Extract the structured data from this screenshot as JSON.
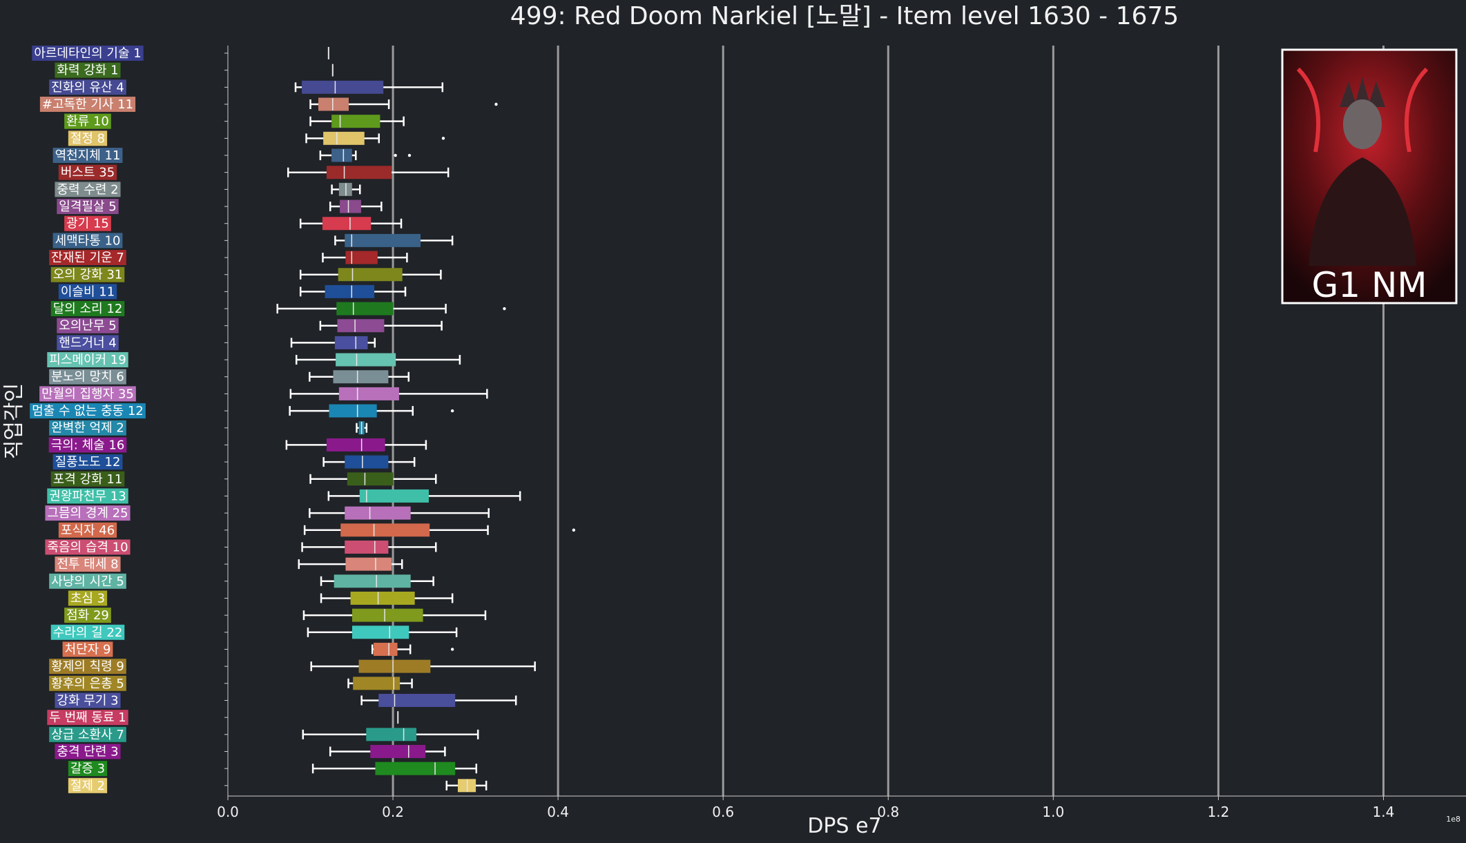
{
  "chart_data": {
    "type": "boxplot",
    "orientation": "horizontal",
    "title": "499: Red Doom Narkiel [노말] - Item level 1630 - 1675",
    "xlabel": "DPS e7",
    "ylabel": "직업각인",
    "x_scale_label": "1e8",
    "xlim": [
      0,
      1.5
    ],
    "x_ticks": [
      0.0,
      0.2,
      0.4,
      0.6,
      0.8,
      1.0,
      1.2,
      1.4
    ],
    "x_tick_labels": [
      "0.0",
      "0.2",
      "0.4",
      "0.6",
      "0.8",
      "1.0",
      "1.2",
      "1.4"
    ],
    "grid": "vertical lines at x ticks",
    "badge": {
      "text": "G1 NM",
      "placement": "top-right"
    },
    "categories": [
      {
        "label": "아르데타인의 기술 1",
        "color": "#3a3f8f",
        "whislo": 0.122,
        "q1": 0.122,
        "med": 0.122,
        "q3": 0.122,
        "whishi": 0.122,
        "fliers": []
      },
      {
        "label": "화력 강화 1",
        "color": "#3a6b1f",
        "whislo": 0.127,
        "q1": 0.127,
        "med": 0.127,
        "q3": 0.127,
        "whishi": 0.127,
        "fliers": []
      },
      {
        "label": "진화의 유산 4",
        "color": "#454a92",
        "whislo": 0.082,
        "q1": 0.09,
        "med": 0.13,
        "q3": 0.188,
        "whishi": 0.26,
        "fliers": []
      },
      {
        "label": "#고독한 기사 11",
        "color": "#c9806e",
        "whislo": 0.1,
        "q1": 0.11,
        "med": 0.127,
        "q3": 0.146,
        "whishi": 0.195,
        "fliers": [
          0.325
        ]
      },
      {
        "label": "환류 10",
        "color": "#5e9a1c",
        "whislo": 0.1,
        "q1": 0.126,
        "med": 0.136,
        "q3": 0.184,
        "whishi": 0.213,
        "fliers": []
      },
      {
        "label": "절정 8",
        "color": "#e0c46a",
        "whislo": 0.095,
        "q1": 0.116,
        "med": 0.132,
        "q3": 0.165,
        "whishi": 0.183,
        "fliers": [
          0.261
        ]
      },
      {
        "label": "역천지체 11",
        "color": "#3d6189",
        "whislo": 0.112,
        "q1": 0.126,
        "med": 0.14,
        "q3": 0.15,
        "whishi": 0.155,
        "fliers": [
          0.203,
          0.22
        ]
      },
      {
        "label": "버스트 35",
        "color": "#9b2a2a",
        "whislo": 0.073,
        "q1": 0.12,
        "med": 0.141,
        "q3": 0.198,
        "whishi": 0.267,
        "fliers": []
      },
      {
        "label": "중력 수련 2",
        "color": "#7f8c8d",
        "whislo": 0.126,
        "q1": 0.135,
        "med": 0.143,
        "q3": 0.15,
        "whishi": 0.16,
        "fliers": []
      },
      {
        "label": "일격필살 5",
        "color": "#8a4a8c",
        "whislo": 0.124,
        "q1": 0.136,
        "med": 0.146,
        "q3": 0.161,
        "whishi": 0.186,
        "fliers": []
      },
      {
        "label": "광기 15",
        "color": "#d63b4e",
        "whislo": 0.088,
        "q1": 0.115,
        "med": 0.148,
        "q3": 0.173,
        "whishi": 0.21,
        "fliers": []
      },
      {
        "label": "세맥타통 10",
        "color": "#3a6289",
        "whislo": 0.13,
        "q1": 0.142,
        "med": 0.15,
        "q3": 0.233,
        "whishi": 0.272,
        "fliers": []
      },
      {
        "label": "잔재된 기운 7",
        "color": "#a5282a",
        "whislo": 0.115,
        "q1": 0.143,
        "med": 0.15,
        "q3": 0.181,
        "whishi": 0.217,
        "fliers": []
      },
      {
        "label": "오의 강화 31",
        "color": "#7d871c",
        "whislo": 0.088,
        "q1": 0.134,
        "med": 0.151,
        "q3": 0.211,
        "whishi": 0.258,
        "fliers": []
      },
      {
        "label": "이슬비 11",
        "color": "#1f4f99",
        "whislo": 0.088,
        "q1": 0.118,
        "med": 0.15,
        "q3": 0.177,
        "whishi": 0.215,
        "fliers": []
      },
      {
        "label": "달의 소리 12",
        "color": "#1f7a1f",
        "whislo": 0.06,
        "q1": 0.132,
        "med": 0.152,
        "q3": 0.2,
        "whishi": 0.264,
        "fliers": [
          0.335
        ]
      },
      {
        "label": "오의난무 5",
        "color": "#8c4b93",
        "whislo": 0.112,
        "q1": 0.133,
        "med": 0.154,
        "q3": 0.189,
        "whishi": 0.259,
        "fliers": []
      },
      {
        "label": "핸드거너 4",
        "color": "#4a4fa0",
        "whislo": 0.077,
        "q1": 0.13,
        "med": 0.155,
        "q3": 0.169,
        "whishi": 0.178,
        "fliers": []
      },
      {
        "label": "피스메이커 19",
        "color": "#66c2b1",
        "whislo": 0.083,
        "q1": 0.131,
        "med": 0.156,
        "q3": 0.203,
        "whishi": 0.281,
        "fliers": []
      },
      {
        "label": "분노의 망치 6",
        "color": "#7a8e95",
        "whislo": 0.099,
        "q1": 0.128,
        "med": 0.157,
        "q3": 0.194,
        "whishi": 0.219,
        "fliers": []
      },
      {
        "label": "만월의 집행자 35",
        "color": "#b870bb",
        "whislo": 0.076,
        "q1": 0.135,
        "med": 0.157,
        "q3": 0.207,
        "whishi": 0.314,
        "fliers": []
      },
      {
        "label": "멈출 수 없는 충동 12",
        "color": "#1a86b3",
        "whislo": 0.075,
        "q1": 0.123,
        "med": 0.157,
        "q3": 0.18,
        "whishi": 0.224,
        "fliers": [
          0.272
        ]
      },
      {
        "label": "완벽한 억제 2",
        "color": "#2488a8",
        "whislo": 0.156,
        "q1": 0.159,
        "med": 0.162,
        "q3": 0.165,
        "whishi": 0.168,
        "fliers": []
      },
      {
        "label": "극의: 체술 16",
        "color": "#8a1a8c",
        "whislo": 0.071,
        "q1": 0.12,
        "med": 0.162,
        "q3": 0.19,
        "whishi": 0.24,
        "fliers": []
      },
      {
        "label": "질풍노도 12",
        "color": "#1f4f99",
        "whislo": 0.116,
        "q1": 0.142,
        "med": 0.163,
        "q3": 0.194,
        "whishi": 0.226,
        "fliers": []
      },
      {
        "label": "포격 강화 11",
        "color": "#3a5f1a",
        "whislo": 0.1,
        "q1": 0.145,
        "med": 0.166,
        "q3": 0.2,
        "whishi": 0.252,
        "fliers": []
      },
      {
        "label": "권왕파천무 13",
        "color": "#3fbfa8",
        "whislo": 0.122,
        "q1": 0.16,
        "med": 0.168,
        "q3": 0.243,
        "whishi": 0.354,
        "fliers": []
      },
      {
        "label": "그믐의 경계 25",
        "color": "#b870bb",
        "whislo": 0.099,
        "q1": 0.142,
        "med": 0.172,
        "q3": 0.221,
        "whishi": 0.316,
        "fliers": []
      },
      {
        "label": "포식자 46",
        "color": "#d2694c",
        "whislo": 0.093,
        "q1": 0.137,
        "med": 0.177,
        "q3": 0.244,
        "whishi": 0.315,
        "fliers": [
          0.419
        ]
      },
      {
        "label": "죽음의 습격 10",
        "color": "#cc4e72",
        "whislo": 0.09,
        "q1": 0.142,
        "med": 0.178,
        "q3": 0.194,
        "whishi": 0.252,
        "fliers": []
      },
      {
        "label": "전투 태세 8",
        "color": "#d9857a",
        "whislo": 0.086,
        "q1": 0.143,
        "med": 0.179,
        "q3": 0.198,
        "whishi": 0.211,
        "fliers": []
      },
      {
        "label": "사냥의 시간 5",
        "color": "#5fb3a3",
        "whislo": 0.113,
        "q1": 0.129,
        "med": 0.18,
        "q3": 0.221,
        "whishi": 0.249,
        "fliers": []
      },
      {
        "label": "초심 3",
        "color": "#a7a820",
        "whislo": 0.113,
        "q1": 0.149,
        "med": 0.182,
        "q3": 0.226,
        "whishi": 0.272,
        "fliers": []
      },
      {
        "label": "점화 29",
        "color": "#7f9a1c",
        "whislo": 0.092,
        "q1": 0.151,
        "med": 0.19,
        "q3": 0.236,
        "whishi": 0.312,
        "fliers": []
      },
      {
        "label": "수라의 길 22",
        "color": "#3fc8bd",
        "whislo": 0.097,
        "q1": 0.151,
        "med": 0.196,
        "q3": 0.219,
        "whishi": 0.277,
        "fliers": []
      },
      {
        "label": "처단자 9",
        "color": "#d6704f",
        "whislo": 0.175,
        "q1": 0.177,
        "med": 0.195,
        "q3": 0.205,
        "whishi": 0.221,
        "fliers": [
          0.272
        ]
      },
      {
        "label": "황제의 칙령 9",
        "color": "#9e7c26",
        "whislo": 0.101,
        "q1": 0.159,
        "med": 0.2,
        "q3": 0.245,
        "whishi": 0.372,
        "fliers": []
      },
      {
        "label": "황후의 은총 5",
        "color": "#a08625",
        "whislo": 0.146,
        "q1": 0.152,
        "med": 0.201,
        "q3": 0.208,
        "whishi": 0.223,
        "fliers": []
      },
      {
        "label": "강화 무기 3",
        "color": "#4a4f9c",
        "whislo": 0.162,
        "q1": 0.183,
        "med": 0.202,
        "q3": 0.275,
        "whishi": 0.349,
        "fliers": []
      },
      {
        "label": "두 번째 동료 1",
        "color": "#c73c62",
        "whislo": 0.206,
        "q1": 0.206,
        "med": 0.206,
        "q3": 0.206,
        "whishi": 0.206,
        "fliers": []
      },
      {
        "label": "상급 소환사 7",
        "color": "#2a9a8a",
        "whislo": 0.091,
        "q1": 0.168,
        "med": 0.213,
        "q3": 0.228,
        "whishi": 0.303,
        "fliers": []
      },
      {
        "label": "충격 단련 3",
        "color": "#8a1a8c",
        "whislo": 0.124,
        "q1": 0.173,
        "med": 0.219,
        "q3": 0.239,
        "whishi": 0.263,
        "fliers": []
      },
      {
        "label": "갈증 3",
        "color": "#1f8a1f",
        "whislo": 0.103,
        "q1": 0.179,
        "med": 0.251,
        "q3": 0.275,
        "whishi": 0.301,
        "fliers": []
      },
      {
        "label": "절제 2",
        "color": "#e6cc70",
        "whislo": 0.265,
        "q1": 0.279,
        "med": 0.29,
        "q3": 0.3,
        "whishi": 0.313,
        "fliers": []
      }
    ]
  }
}
